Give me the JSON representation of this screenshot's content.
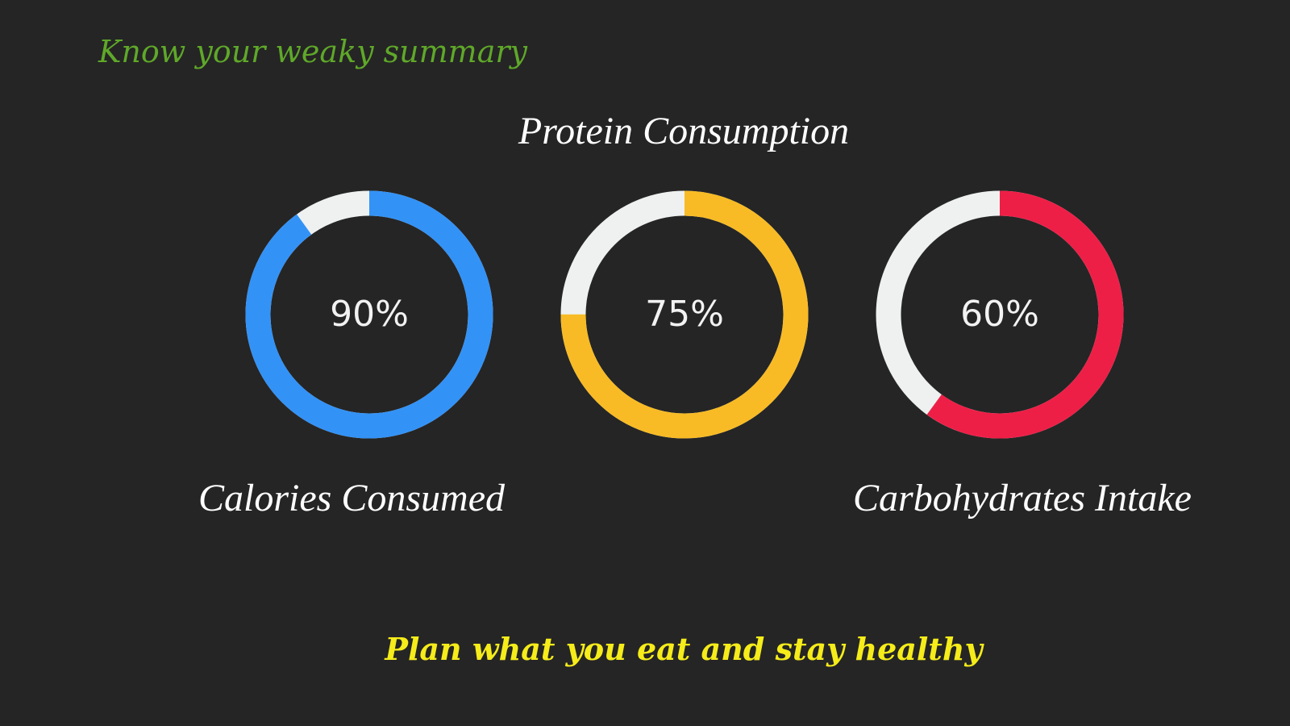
{
  "header": {
    "title": "Know your weaky summary"
  },
  "rings": [
    {
      "label": "Calories Consumed",
      "percent_text": "90%",
      "percent": 90,
      "color": "#3392f6",
      "track_color": "#eef1f0"
    },
    {
      "label": "Protein Consumption",
      "percent_text": "75%",
      "percent": 75,
      "color": "#f8bb25",
      "track_color": "#eef1f0"
    },
    {
      "label": "Carbohydrates Intake",
      "percent_text": "60%",
      "percent": 60,
      "color": "#ee1f47",
      "track_color": "#eef1f0"
    }
  ],
  "footer": {
    "tagline": "Plan what you eat and stay healthy"
  }
}
